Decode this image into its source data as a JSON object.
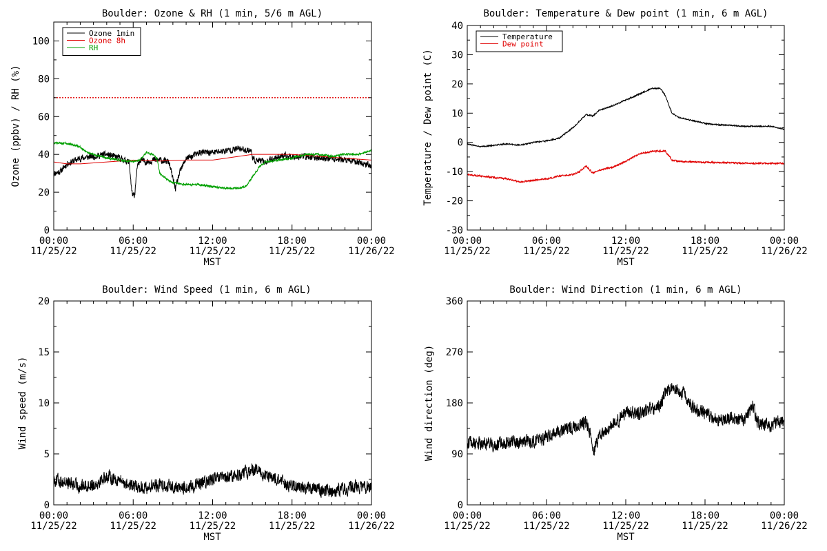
{
  "chart_data": [
    {
      "id": "ozone",
      "type": "line",
      "title": "Boulder: Ozone & RH (1 min, 5/6 m AGL)",
      "xlabel": "MST",
      "ylabel": "Ozone (ppbv) / RH (%)",
      "x_ticks": [
        {
          "time": "00:00",
          "date": "11/25/22"
        },
        {
          "time": "06:00",
          "date": "11/25/22"
        },
        {
          "time": "12:00",
          "date": "11/25/22"
        },
        {
          "time": "18:00",
          "date": "11/25/22"
        },
        {
          "time": "00:00",
          "date": "11/26/22"
        }
      ],
      "xlim_hours": [
        0,
        24
      ],
      "ylim": [
        0,
        110
      ],
      "yticks": [
        0,
        20,
        40,
        60,
        80,
        100
      ],
      "reference_lines": [
        {
          "y": 70,
          "style": "dotted",
          "color": "#e00000"
        }
      ],
      "legend_position": "top-left",
      "series": [
        {
          "name": "Ozone 1min",
          "color": "#000000",
          "noise": 1.6,
          "points": [
            [
              0,
              30
            ],
            [
              0.5,
              31
            ],
            [
              1,
              35
            ],
            [
              2,
              38
            ],
            [
              3,
              39
            ],
            [
              4,
              40
            ],
            [
              5,
              38
            ],
            [
              5.7,
              36
            ],
            [
              5.9,
              20
            ],
            [
              6.1,
              17
            ],
            [
              6.3,
              33
            ],
            [
              6.5,
              37
            ],
            [
              7,
              36
            ],
            [
              7.5,
              37
            ],
            [
              8,
              37
            ],
            [
              8.7,
              36
            ],
            [
              9,
              27
            ],
            [
              9.2,
              22
            ],
            [
              9.5,
              30
            ],
            [
              10,
              38
            ],
            [
              10.5,
              39
            ],
            [
              11,
              41
            ],
            [
              12,
              41
            ],
            [
              13,
              42
            ],
            [
              14,
              43
            ],
            [
              14.9,
              42
            ],
            [
              15.1,
              37
            ],
            [
              16,
              36
            ],
            [
              17,
              39
            ],
            [
              18,
              39
            ],
            [
              19,
              39
            ],
            [
              20,
              38
            ],
            [
              21,
              38
            ],
            [
              22,
              37
            ],
            [
              23,
              36
            ],
            [
              24,
              34
            ]
          ]
        },
        {
          "name": "Ozone 8h",
          "color": "#e00000",
          "noise": 0,
          "points": [
            [
              0,
              36
            ],
            [
              1,
              35
            ],
            [
              2,
              35
            ],
            [
              4,
              36
            ],
            [
              6,
              37
            ],
            [
              8,
              36.5
            ],
            [
              10,
              37
            ],
            [
              12,
              37
            ],
            [
              14,
              39
            ],
            [
              15,
              40
            ],
            [
              16,
              40
            ],
            [
              18,
              40
            ],
            [
              20,
              39
            ],
            [
              22,
              38
            ],
            [
              24,
              37
            ]
          ]
        },
        {
          "name": "RH",
          "color": "#00a000",
          "noise": 0.5,
          "points": [
            [
              0,
              46
            ],
            [
              1,
              46
            ],
            [
              2,
              44
            ],
            [
              2.5,
              41
            ],
            [
              3,
              40
            ],
            [
              4,
              38
            ],
            [
              5,
              37
            ],
            [
              6,
              36
            ],
            [
              6.5,
              37
            ],
            [
              7,
              41
            ],
            [
              7.5,
              40
            ],
            [
              7.8,
              38
            ],
            [
              8,
              30
            ],
            [
              8.5,
              27
            ],
            [
              9,
              25
            ],
            [
              10,
              24
            ],
            [
              11,
              24
            ],
            [
              12,
              23
            ],
            [
              13,
              22
            ],
            [
              14,
              22
            ],
            [
              14.5,
              23
            ],
            [
              15,
              28
            ],
            [
              15.5,
              33
            ],
            [
              16,
              36
            ],
            [
              17,
              37
            ],
            [
              18,
              38
            ],
            [
              19,
              40
            ],
            [
              20,
              40
            ],
            [
              21,
              39
            ],
            [
              22,
              40
            ],
            [
              23,
              40
            ],
            [
              24,
              42
            ]
          ]
        }
      ]
    },
    {
      "id": "temp",
      "type": "line",
      "title": "Boulder: Temperature & Dew point (1 min, 6 m AGL)",
      "xlabel": "MST",
      "ylabel": "Temperature / Dew point (C)",
      "x_ticks": [
        {
          "time": "00:00",
          "date": "11/25/22"
        },
        {
          "time": "06:00",
          "date": "11/25/22"
        },
        {
          "time": "12:00",
          "date": "11/25/22"
        },
        {
          "time": "18:00",
          "date": "11/25/22"
        },
        {
          "time": "00:00",
          "date": "11/26/22"
        }
      ],
      "xlim_hours": [
        0,
        24
      ],
      "ylim": [
        -30,
        40
      ],
      "yticks": [
        -30,
        -20,
        -10,
        0,
        10,
        20,
        30,
        40
      ],
      "legend_position": "top-left",
      "series": [
        {
          "name": "Temperature",
          "color": "#000000",
          "noise": 0.2,
          "points": [
            [
              0,
              -0.5
            ],
            [
              1,
              -1.5
            ],
            [
              2,
              -1
            ],
            [
              3,
              -0.5
            ],
            [
              4,
              -1
            ],
            [
              5,
              0
            ],
            [
              6,
              0.5
            ],
            [
              7,
              1.5
            ],
            [
              8,
              5
            ],
            [
              9,
              9.5
            ],
            [
              9.5,
              9
            ],
            [
              10,
              11
            ],
            [
              11,
              12.5
            ],
            [
              12,
              14.5
            ],
            [
              13,
              16.5
            ],
            [
              14,
              18.5
            ],
            [
              14.6,
              18.5
            ],
            [
              15,
              16
            ],
            [
              15.5,
              10
            ],
            [
              16,
              8.5
            ],
            [
              17,
              7.5
            ],
            [
              18,
              6.5
            ],
            [
              19,
              6
            ],
            [
              20,
              5.8
            ],
            [
              21,
              5.5
            ],
            [
              22,
              5.5
            ],
            [
              23,
              5.5
            ],
            [
              24,
              4.5
            ]
          ]
        },
        {
          "name": "Dew point",
          "color": "#e00000",
          "noise": 0.25,
          "points": [
            [
              0,
              -11
            ],
            [
              1,
              -11.5
            ],
            [
              2,
              -12
            ],
            [
              3,
              -12.5
            ],
            [
              4,
              -13.5
            ],
            [
              5,
              -13
            ],
            [
              6,
              -12.5
            ],
            [
              7,
              -11.5
            ],
            [
              8,
              -11
            ],
            [
              8.5,
              -10
            ],
            [
              9,
              -8
            ],
            [
              9.5,
              -10.5
            ],
            [
              10,
              -9.5
            ],
            [
              11,
              -8.5
            ],
            [
              12,
              -6.5
            ],
            [
              13,
              -4
            ],
            [
              14,
              -3
            ],
            [
              15,
              -3
            ],
            [
              15.5,
              -6
            ],
            [
              16,
              -6.5
            ],
            [
              18,
              -6.8
            ],
            [
              20,
              -7
            ],
            [
              22,
              -7.2
            ],
            [
              24,
              -7.2
            ]
          ]
        }
      ]
    },
    {
      "id": "wspd",
      "type": "line",
      "title": "Boulder: Wind Speed (1 min, 6 m AGL)",
      "xlabel": "MST",
      "ylabel": "Wind speed (m/s)",
      "x_ticks": [
        {
          "time": "00:00",
          "date": "11/25/22"
        },
        {
          "time": "06:00",
          "date": "11/25/22"
        },
        {
          "time": "12:00",
          "date": "11/25/22"
        },
        {
          "time": "18:00",
          "date": "11/25/22"
        },
        {
          "time": "00:00",
          "date": "11/26/22"
        }
      ],
      "xlim_hours": [
        0,
        24
      ],
      "ylim": [
        0,
        20
      ],
      "yticks": [
        0,
        5,
        10,
        15,
        20
      ],
      "series": [
        {
          "name": "",
          "color": "#000000",
          "noise": 0.6,
          "min": 0.1,
          "points": [
            [
              0,
              2.5
            ],
            [
              1,
              2.2
            ],
            [
              2,
              1.8
            ],
            [
              3,
              2
            ],
            [
              4,
              2.8
            ],
            [
              5,
              2.4
            ],
            [
              6,
              1.8
            ],
            [
              7,
              1.7
            ],
            [
              8,
              2
            ],
            [
              9,
              1.8
            ],
            [
              10,
              1.6
            ],
            [
              11,
              2
            ],
            [
              12,
              2.5
            ],
            [
              13,
              2.6
            ],
            [
              14,
              3
            ],
            [
              14.8,
              3.2
            ],
            [
              15,
              3.6
            ],
            [
              16,
              2.8
            ],
            [
              17,
              2.4
            ],
            [
              18,
              1.8
            ],
            [
              19,
              1.7
            ],
            [
              20,
              1.5
            ],
            [
              21,
              1.4
            ],
            [
              22,
              1.6
            ],
            [
              23,
              1.8
            ],
            [
              24,
              1.6
            ]
          ]
        }
      ]
    },
    {
      "id": "wdir",
      "type": "line",
      "title": "Boulder: Wind Direction (1 min, 6 m AGL)",
      "xlabel": "MST",
      "ylabel": "Wind direction (deg)",
      "x_ticks": [
        {
          "time": "00:00",
          "date": "11/25/22"
        },
        {
          "time": "06:00",
          "date": "11/25/22"
        },
        {
          "time": "12:00",
          "date": "11/25/22"
        },
        {
          "time": "18:00",
          "date": "11/25/22"
        },
        {
          "time": "00:00",
          "date": "11/26/22"
        }
      ],
      "xlim_hours": [
        0,
        24
      ],
      "ylim": [
        0,
        360
      ],
      "yticks": [
        0,
        90,
        180,
        270,
        360
      ],
      "series": [
        {
          "name": "",
          "color": "#000000",
          "noise": 11,
          "points": [
            [
              0,
              110
            ],
            [
              1,
              108
            ],
            [
              2,
              105
            ],
            [
              3,
              110
            ],
            [
              4,
              112
            ],
            [
              5,
              110
            ],
            [
              6,
              120
            ],
            [
              7,
              130
            ],
            [
              8,
              135
            ],
            [
              9,
              145
            ],
            [
              9.4,
              120
            ],
            [
              9.6,
              95
            ],
            [
              10,
              125
            ],
            [
              11,
              140
            ],
            [
              11.5,
              150
            ],
            [
              12,
              165
            ],
            [
              13,
              160
            ],
            [
              14,
              170
            ],
            [
              14.6,
              175
            ],
            [
              15,
              200
            ],
            [
              15.5,
              205
            ],
            [
              16,
              200
            ],
            [
              16.5,
              195
            ],
            [
              17,
              175
            ],
            [
              18,
              160
            ],
            [
              19,
              150
            ],
            [
              20,
              155
            ],
            [
              21,
              150
            ],
            [
              21.6,
              175
            ],
            [
              22,
              145
            ],
            [
              23,
              140
            ],
            [
              24,
              150
            ]
          ]
        }
      ]
    }
  ]
}
